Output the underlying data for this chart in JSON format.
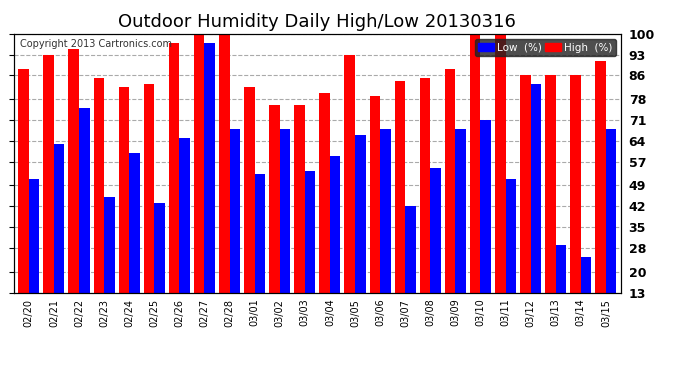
{
  "title": "Outdoor Humidity Daily High/Low 20130316",
  "copyright": "Copyright 2013 Cartronics.com",
  "categories": [
    "02/20",
    "02/21",
    "02/22",
    "02/23",
    "02/24",
    "02/25",
    "02/26",
    "02/27",
    "02/28",
    "03/01",
    "03/02",
    "03/03",
    "03/04",
    "03/05",
    "03/06",
    "03/07",
    "03/08",
    "03/09",
    "03/10",
    "03/11",
    "03/12",
    "03/13",
    "03/14",
    "03/15"
  ],
  "high": [
    88,
    93,
    95,
    85,
    82,
    83,
    97,
    100,
    100,
    82,
    76,
    76,
    80,
    93,
    79,
    84,
    85,
    88,
    100,
    100,
    86,
    86,
    86,
    91
  ],
  "low": [
    51,
    63,
    75,
    45,
    60,
    43,
    65,
    97,
    68,
    53,
    68,
    54,
    59,
    66,
    68,
    42,
    55,
    68,
    71,
    51,
    83,
    29,
    25,
    68
  ],
  "high_color": "#ff0000",
  "low_color": "#0000ff",
  "bg_color": "#ffffff",
  "grid_color": "#aaaaaa",
  "ylim_min": 13,
  "ylim_max": 100,
  "yticks": [
    13,
    20,
    28,
    35,
    42,
    49,
    57,
    64,
    71,
    78,
    86,
    93,
    100
  ],
  "bar_width": 0.42,
  "title_fontsize": 13,
  "copyright_fontsize": 7,
  "legend_low_label": "Low  (%)",
  "legend_high_label": "High  (%)"
}
